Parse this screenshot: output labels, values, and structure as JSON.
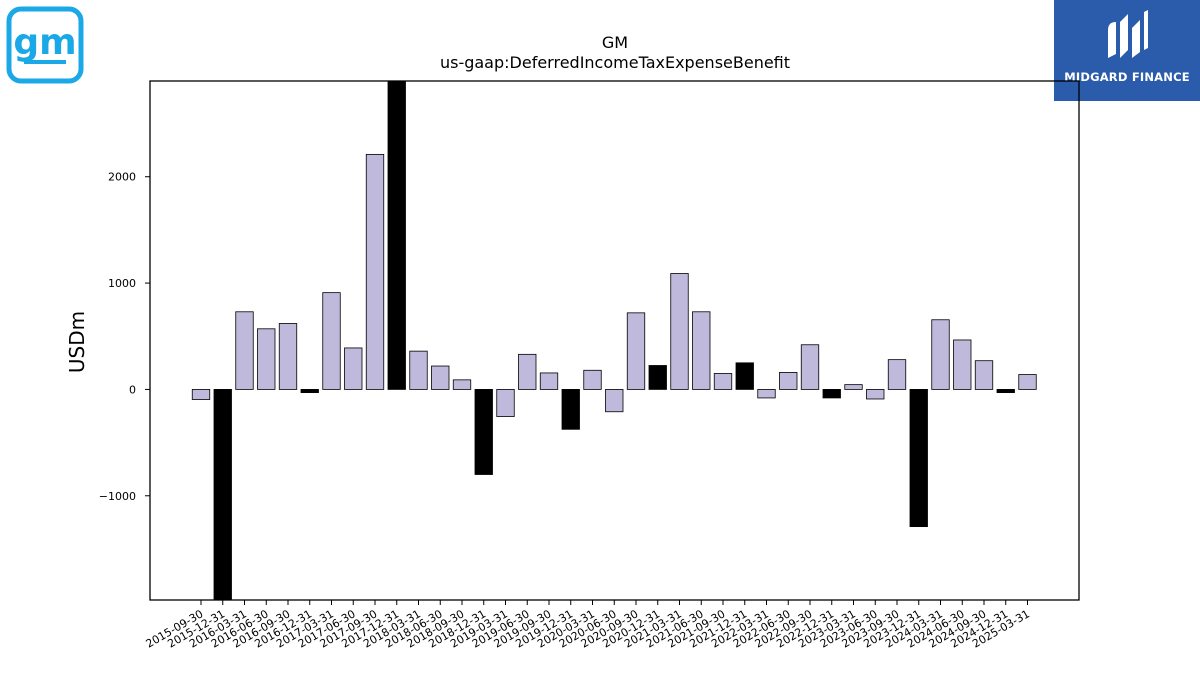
{
  "brand": {
    "name": "MIDGARD FINANCE",
    "gm_logo_text": "gm"
  },
  "colors": {
    "positive": "#bfbadb",
    "negative": "#000000",
    "brand_bg": "#2b5bab",
    "gm_blue": "#1aa8e6"
  },
  "chart_data": {
    "type": "bar",
    "title": "GM",
    "subtitle": "us-gaap:DeferredIncomeTaxExpenseBenefit",
    "ylabel": "USDm",
    "xlabel": "",
    "ylim": [
      -1980,
      2900
    ],
    "yticks": [
      -1000,
      0,
      1000,
      2000
    ],
    "grid": false,
    "categories": [
      "2015-09-30",
      "2015-12-31",
      "2016-03-31",
      "2016-06-30",
      "2016-09-30",
      "2016-12-31",
      "2017-03-31",
      "2017-06-30",
      "2017-09-30",
      "2017-12-31",
      "2018-03-31",
      "2018-06-30",
      "2018-09-30",
      "2018-12-31",
      "2019-03-31",
      "2019-06-30",
      "2019-09-30",
      "2019-12-31",
      "2020-03-31",
      "2020-06-30",
      "2020-09-30",
      "2020-12-31",
      "2021-03-31",
      "2021-06-30",
      "2021-09-30",
      "2021-12-31",
      "2022-03-31",
      "2022-06-30",
      "2022-09-30",
      "2022-12-31",
      "2023-03-31",
      "2023-06-30",
      "2023-09-30",
      "2023-12-31",
      "2024-03-31",
      "2024-06-30",
      "2024-09-30",
      "2024-12-31",
      "2025-03-31"
    ],
    "values": [
      -95,
      -1990,
      730,
      570,
      620,
      -30,
      910,
      390,
      2210,
      2910,
      360,
      220,
      90,
      -800,
      -255,
      330,
      155,
      -375,
      180,
      -210,
      720,
      225,
      1090,
      730,
      150,
      250,
      -80,
      160,
      420,
      -80,
      45,
      -90,
      280,
      -1290,
      655,
      465,
      270,
      -30,
      140
    ],
    "highlight": [
      false,
      true,
      false,
      false,
      false,
      true,
      false,
      false,
      false,
      true,
      false,
      false,
      false,
      true,
      false,
      false,
      false,
      true,
      false,
      false,
      false,
      true,
      false,
      false,
      false,
      true,
      false,
      false,
      false,
      true,
      false,
      false,
      false,
      true,
      false,
      false,
      false,
      true,
      false
    ]
  }
}
